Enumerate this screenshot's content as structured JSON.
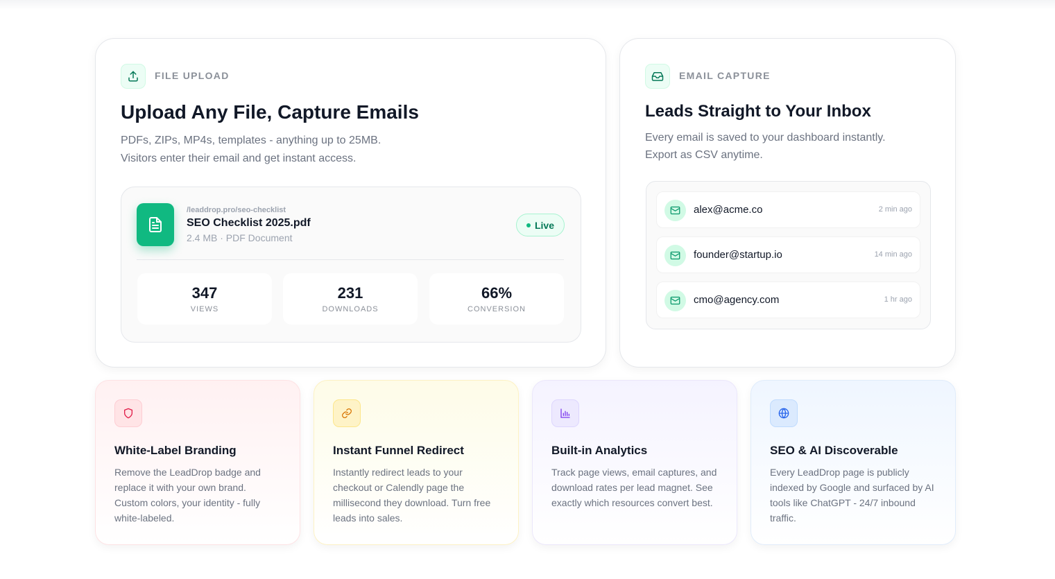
{
  "upload_card": {
    "label": "FILE UPLOAD",
    "title": "Upload Any File, Capture Emails",
    "description_lines": [
      "PDFs, ZIPs, MP4s, templates - anything up to 25MB.",
      "Visitors enter their email and get instant access."
    ],
    "file": {
      "url": "/leaddrop.pro/seo-checklist",
      "name": "SEO Checklist 2025.pdf",
      "meta": "2.4 MB · PDF Document",
      "status": "Live"
    },
    "stats": [
      {
        "value": "347",
        "label": "VIEWS"
      },
      {
        "value": "231",
        "label": "DOWNLOADS"
      },
      {
        "value": "66%",
        "label": "CONVERSION"
      }
    ]
  },
  "email_card": {
    "label": "EMAIL CAPTURE",
    "title": "Leads Straight to Your Inbox",
    "description_lines": [
      "Every email is saved to your dashboard instantly.",
      "Export as CSV anytime."
    ],
    "emails": [
      {
        "address": "alex@acme.co",
        "time": "2 min ago"
      },
      {
        "address": "founder@startup.io",
        "time": "14 min ago"
      },
      {
        "address": "cmo@agency.com",
        "time": "1 hr ago"
      }
    ]
  },
  "features": [
    {
      "title": "White-Label Branding",
      "description": "Remove the LeadDrop badge and replace it with your own brand. Custom colors, your identity - fully white-labeled."
    },
    {
      "title": "Instant Funnel Redirect",
      "description": "Instantly redirect leads to your checkout or Calendly page the millisecond they download. Turn free leads into sales."
    },
    {
      "title": "Built-in Analytics",
      "description": "Track page views, email captures, and download rates per lead magnet. See exactly which resources convert best."
    },
    {
      "title": "SEO & AI Discoverable",
      "description": "Every LeadDrop page is publicly indexed by Google and surfaced by AI tools like ChatGPT - 24/7 inbound traffic."
    }
  ]
}
